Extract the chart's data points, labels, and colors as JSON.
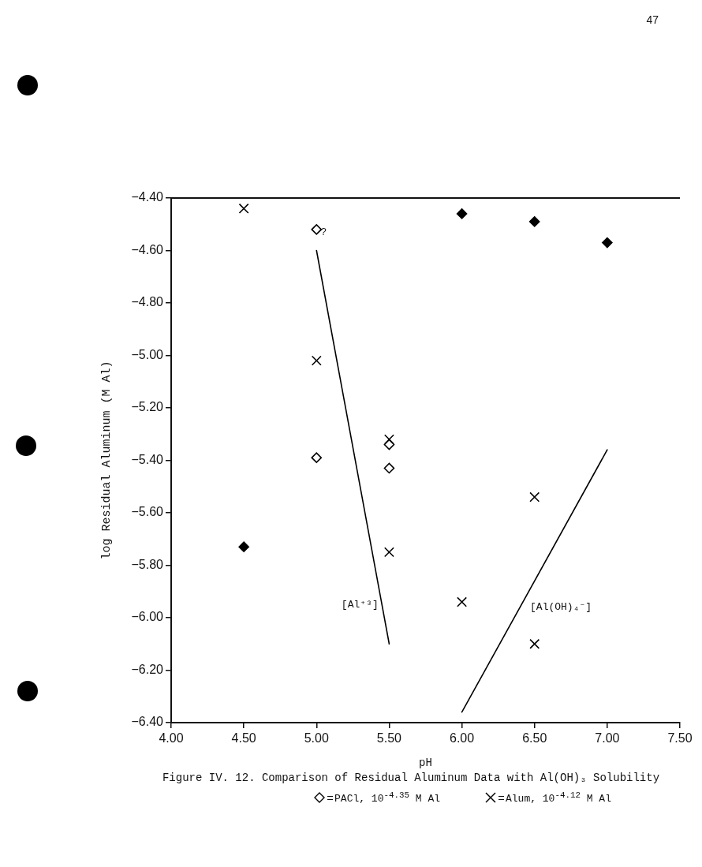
{
  "chart_data": {
    "type": "scatter",
    "title": "Figure IV. 12. Comparison of Residual Aluminum Data with Al(OH)₃ Solubility",
    "xlabel": "pH",
    "ylabel": "log Residual Aluminum (M Al)",
    "xlim": [
      4,
      7.5
    ],
    "xticks": [
      {
        "value": 4,
        "label": "4.00"
      },
      {
        "value": 4.5,
        "label": "4.50"
      },
      {
        "value": 5,
        "label": "5.00"
      },
      {
        "value": 5.5,
        "label": "5.50"
      },
      {
        "value": 6,
        "label": "6.00"
      },
      {
        "value": 6.5,
        "label": "6.50"
      },
      {
        "value": 7,
        "label": "7.00"
      },
      {
        "value": 7.5,
        "label": "7.50"
      }
    ],
    "ylim": [
      -6.4,
      -4.4
    ],
    "yticks": [
      {
        "value": -6.4,
        "label": "−6.40"
      },
      {
        "value": -6.2,
        "label": "−6.20"
      },
      {
        "value": -6,
        "label": "−6.00"
      },
      {
        "value": -5.8,
        "label": "−5.80"
      },
      {
        "value": -5.6,
        "label": "−5.60"
      },
      {
        "value": -5.4,
        "label": "−5.40"
      },
      {
        "value": -5.2,
        "label": "−5.20"
      },
      {
        "value": -5,
        "label": "−5.00"
      },
      {
        "value": -4.8,
        "label": "−4.80"
      },
      {
        "value": -4.6,
        "label": "−4.60"
      },
      {
        "value": -4.4,
        "label": "−4.40"
      }
    ],
    "grid": false,
    "legend": "bottom",
    "series": [
      {
        "name": "PACl, 10$^{-4.35}$ M Al",
        "type": "scatter",
        "marker": "diamond",
        "color": "#000000",
        "x": [
          5.0,
          5.0,
          5.5,
          5.5
        ],
        "values": [
          -4.52,
          -5.39,
          -5.34,
          -5.43
        ]
      },
      {
        "name": "Alum, 10$^{-4.12}$ M Al",
        "type": "scatter",
        "marker": "cross",
        "color": "#000000",
        "x": [
          4.5,
          5.0,
          5.5,
          5.5,
          6.0,
          6.5,
          6.5
        ],
        "values": [
          -4.44,
          -5.02,
          -5.32,
          -5.75,
          -5.94,
          -5.54,
          -6.1
        ]
      },
      {
        "type": "scatter",
        "marker": "diamond",
        "color": "#000000",
        "x": [
          4.5,
          6.0,
          6.5,
          7.0
        ],
        "values": [
          -5.73,
          -4.46,
          -4.49,
          -4.57
        ]
      },
      {
        "type": "line",
        "marker": "none",
        "color": "#000000",
        "x": [
          5.0,
          5.5
        ],
        "values": [
          -4.6,
          -6.1
        ]
      },
      {
        "type": "line",
        "marker": "none",
        "color": "#000000",
        "x": [
          6.0,
          7.0
        ],
        "values": [
          -6.36,
          -5.36
        ]
      }
    ],
    "annotations": [
      "47",
      {
        "text": "?",
        "x": 5.05,
        "y": -4.53
      },
      "[Al⁺³]",
      "[Al(OH)₄⁻]"
    ]
  }
}
